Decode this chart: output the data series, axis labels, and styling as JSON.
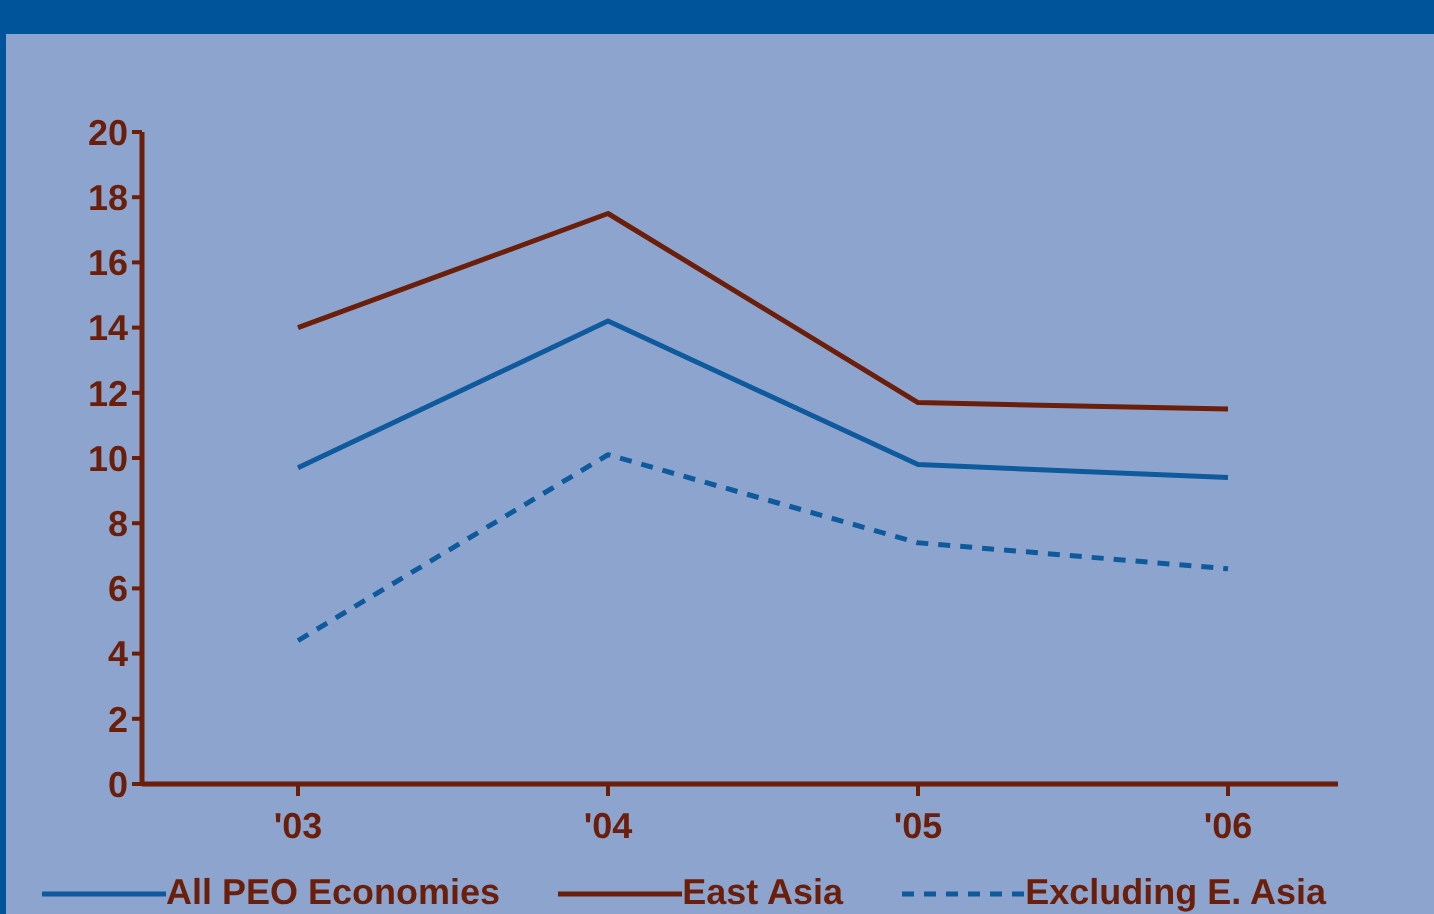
{
  "chart_data": {
    "type": "line",
    "categories": [
      "'03",
      "'04",
      "'05",
      "'06"
    ],
    "series": [
      {
        "name": "All PEO Economies",
        "color": "#0f5a9c",
        "values": [
          9.7,
          14.2,
          9.8,
          9.4
        ]
      },
      {
        "name": "East Asia",
        "color": "#6b1f0a",
        "values": [
          14.0,
          17.5,
          11.7,
          11.5
        ]
      },
      {
        "name": "Excluding E. Asia",
        "color": "#0f5a9c",
        "values": [
          4.4,
          10.1,
          7.4,
          6.6
        ],
        "line_style": "dashed"
      }
    ],
    "ylim": [
      0,
      20
    ],
    "yticks": [
      0,
      2,
      4,
      6,
      8,
      10,
      12,
      14,
      16,
      18,
      20
    ],
    "grid": false,
    "legend": "bottom",
    "marker": "none"
  }
}
